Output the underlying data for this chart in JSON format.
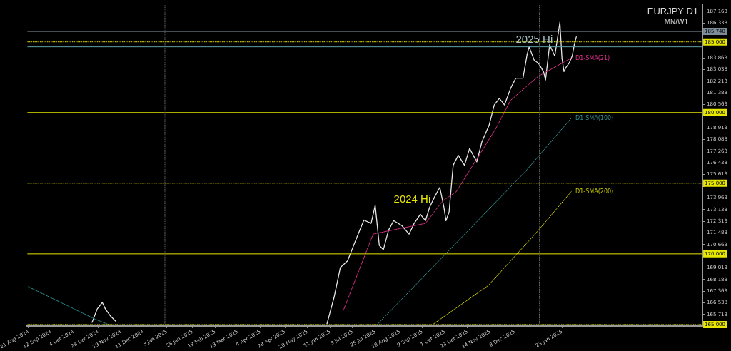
{
  "chart_data": {
    "type": "line",
    "title": "EURJPY D1",
    "subtitle": "MN/W1",
    "xlim": [
      "2024-08-20",
      "2026-06-09"
    ],
    "xticks": [
      {
        "value": "2024-08-21",
        "label": "21 Aug 2024"
      },
      {
        "value": "2024-09-12",
        "label": "12 Sep 2024"
      },
      {
        "value": "2024-10-04",
        "label": "4 Oct 2024"
      },
      {
        "value": "2024-10-28",
        "label": "28 Oct 2024"
      },
      {
        "value": "2024-11-19",
        "label": "19 Nov 2024"
      },
      {
        "value": "2024-12-11",
        "label": "11 Dec 2024"
      },
      {
        "value": "2025-01-03",
        "label": "3 Jan 2025"
      },
      {
        "value": "2025-01-28",
        "label": "28 Jan 2025"
      },
      {
        "value": "2025-02-19",
        "label": "19 Feb 2025"
      },
      {
        "value": "2025-03-13",
        "label": "13 Mar 2025"
      },
      {
        "value": "2025-04-04",
        "label": "4 Apr 2025"
      },
      {
        "value": "2025-04-28",
        "label": "28 Apr 2025"
      },
      {
        "value": "2025-05-20",
        "label": "20 May 2025"
      },
      {
        "value": "2025-06-11",
        "label": "11 Jun 2025"
      },
      {
        "value": "2025-07-03",
        "label": "3 Jul 2025"
      },
      {
        "value": "2025-07-25",
        "label": "25 Jul 2025"
      },
      {
        "value": "2025-08-18",
        "label": "18 Aug 2025"
      },
      {
        "value": "2025-09-09",
        "label": "9 Sep 2025"
      },
      {
        "value": "2025-10-01",
        "label": "1 Oct 2025"
      },
      {
        "value": "2025-10-23",
        "label": "23 Oct 2025"
      },
      {
        "value": "2025-11-14",
        "label": "14 Nov 2025"
      },
      {
        "value": "2025-12-08",
        "label": "8 Dec 2025"
      },
      {
        "value": "2026-01-23",
        "label": "23 Jan 2026"
      }
    ],
    "ylim": [
      164.9,
      187.6
    ],
    "yticks": [
      165.713,
      166.538,
      167.363,
      168.188,
      169.013,
      {
        "value": 169.838,
        "label": null
      },
      170.663,
      171.488,
      172.313,
      173.138,
      173.963,
      {
        "value": 174.788,
        "label": null
      },
      175.613,
      176.438,
      177.263,
      178.088,
      178.913,
      {
        "value": 179.738,
        "label": null
      },
      180.563,
      181.388,
      182.213,
      183.038,
      183.863,
      {
        "value": 184.688,
        "label": null
      },
      {
        "value": 185.513,
        "label": null
      },
      186.338,
      187.163
    ],
    "series": [
      {
        "color": "#e8e8e8",
        "x": [
          "2024-10-22",
          "2024-10-27",
          "2024-11-01",
          "2024-11-04",
          "2024-11-09",
          "2024-11-14",
          "2024-11-20",
          "2025-06-01",
          "2025-06-08",
          "2025-06-15",
          "2025-06-21",
          "2025-06-28",
          "2025-07-04",
          "2025-07-10",
          "2025-07-14",
          "2025-07-21",
          "2025-07-25",
          "2025-07-29",
          "2025-08-02",
          "2025-08-07",
          "2025-08-12",
          "2025-08-20",
          "2025-08-27",
          "2025-09-01",
          "2025-09-07",
          "2025-09-12",
          "2025-09-16",
          "2025-09-21",
          "2025-09-26",
          "2025-09-30",
          "2025-10-02",
          "2025-10-05",
          "2025-10-09",
          "2025-10-14",
          "2025-10-20",
          "2025-10-25",
          "2025-11-01",
          "2025-11-06",
          "2025-11-13",
          "2025-11-18",
          "2025-11-23",
          "2025-11-28",
          "2025-12-04",
          "2025-12-09",
          "2025-12-16",
          "2025-12-20",
          "2025-12-22",
          "2025-12-27",
          "2025-12-31",
          "2026-01-05",
          "2026-01-07",
          "2026-01-11",
          "2026-01-16",
          "2026-01-20",
          "2026-01-21",
          "2026-01-23",
          "2026-01-25",
          "2026-01-27",
          "2026-01-30",
          "2026-02-02",
          "2026-02-04",
          "2026-02-06"
        ],
        "values": [
          165.15,
          166.1,
          166.56,
          166.1,
          165.6,
          165.24,
          null,
          null,
          165.05,
          166.95,
          169.03,
          169.5,
          170.6,
          171.68,
          172.39,
          172.16,
          173.43,
          170.6,
          170.3,
          171.68,
          172.35,
          172.0,
          171.4,
          172.16,
          172.8,
          172.35,
          173.29,
          174.05,
          174.7,
          173.29,
          172.35,
          172.96,
          176.27,
          176.98,
          176.27,
          177.46,
          176.51,
          177.93,
          179.1,
          180.54,
          181.0,
          180.54,
          181.72,
          182.43,
          182.43,
          184.09,
          184.65,
          183.7,
          183.5,
          182.9,
          182.3,
          184.8,
          184.0,
          185.9,
          186.4,
          183.85,
          182.9,
          183.2,
          183.5,
          184.0,
          184.8,
          185.36
        ]
      },
      {
        "name": "D1-SMA(21)",
        "color": "#e0308a",
        "line_style": "dotted",
        "x": [
          "2025-06-24",
          "2025-07-23",
          "2025-08-12",
          "2025-09-12",
          "2025-09-29",
          "2025-10-12",
          "2025-11-19",
          "2025-12-04",
          "2025-12-31",
          "2026-02-01"
        ],
        "values": [
          166.0,
          171.4,
          171.7,
          172.16,
          173.76,
          174.4,
          178.8,
          180.87,
          182.57,
          183.85
        ]
      },
      {
        "name": "D1-SMA(100)",
        "color": "#2f8f8f",
        "line_style": "dotted",
        "x": [
          "2024-08-21",
          "2024-09-28",
          "2024-10-25",
          "2024-11-07",
          "2024-11-20",
          "2025-07-27",
          "2025-10-07",
          "2025-12-18",
          "2026-02-01"
        ],
        "values": [
          167.67,
          166.33,
          165.38,
          165.0,
          null,
          165.0,
          170.4,
          175.8,
          179.6
        ]
      },
      {
        "name": "D1-SMA(200)",
        "color": "#c8c800",
        "line_style": "dotted",
        "x": [
          "2025-09-19",
          "2025-11-12",
          "2025-12-29",
          "2026-02-01"
        ],
        "values": [
          165.0,
          167.75,
          171.5,
          174.4
        ]
      }
    ],
    "ref_lines": [
      {
        "axis": "y",
        "value": 185.74,
        "label": "185.740",
        "color": "#7d8c99",
        "line_style": "solid"
      },
      {
        "axis": "y",
        "value": 184.65,
        "label": null,
        "color": "#5fa0a8",
        "line_style": "solid"
      },
      {
        "axis": "y",
        "value": 185.0,
        "label": "185.000",
        "color": "#e6e600",
        "line_style": "dotted"
      },
      {
        "axis": "y",
        "value": 180.0,
        "label": "180.000",
        "color": "#e6e600",
        "line_style": "solid"
      },
      {
        "axis": "y",
        "value": 175.0,
        "label": "175.000",
        "color": "#e6e600",
        "line_style": "dotted"
      },
      {
        "axis": "y",
        "value": 170.0,
        "label": "170.000",
        "color": "#e6e600",
        "line_style": "solid"
      },
      {
        "axis": "y",
        "value": 165.0,
        "label": "165.000",
        "color": "#e6e600",
        "line_style": "dotted"
      },
      {
        "axis": "x",
        "value": "2025-01-01",
        "label": null,
        "color": "#666666",
        "line_style": "dotted"
      },
      {
        "axis": "x",
        "value": "2026-01-01",
        "label": null,
        "color": "#666666",
        "line_style": "dotted"
      }
    ],
    "annotations": [
      {
        "text": "2025 Hi",
        "x": "2025-12-27",
        "y": 184.65
      },
      "2024 Hi"
    ],
    "legend": false
  }
}
